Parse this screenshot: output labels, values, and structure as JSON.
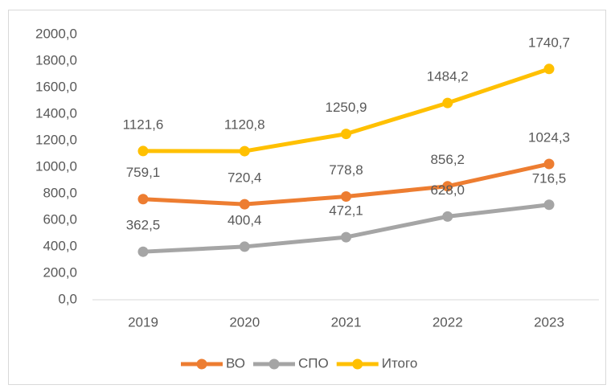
{
  "chart_data": {
    "type": "line",
    "categories": [
      "2019",
      "2020",
      "2021",
      "2022",
      "2023"
    ],
    "series": [
      {
        "name": "ВО",
        "color": "#ED7D31",
        "values": [
          759.1,
          720.4,
          778.8,
          856.2,
          1024.3
        ],
        "value_labels": [
          "759,1",
          "720,4",
          "778,8",
          "856,2",
          "1024,3"
        ]
      },
      {
        "name": "СПО",
        "color": "#A5A5A5",
        "values": [
          362.5,
          400.4,
          472.1,
          628.0,
          716.5
        ],
        "value_labels": [
          "362,5",
          "400,4",
          "472,1",
          "628,0",
          "716,5"
        ]
      },
      {
        "name": "Итого",
        "color": "#FFC000",
        "values": [
          1121.6,
          1120.8,
          1250.9,
          1484.2,
          1740.7
        ],
        "value_labels": [
          "1121,6",
          "1120,8",
          "1250,9",
          "1484,2",
          "1740,7"
        ]
      }
    ],
    "ylim": [
      0,
      2000
    ],
    "yticks": [
      {
        "value": 0,
        "label": "0,0"
      },
      {
        "value": 200,
        "label": "200,0"
      },
      {
        "value": 400,
        "label": "400,0"
      },
      {
        "value": 600,
        "label": "600,0"
      },
      {
        "value": 800,
        "label": "800,0"
      },
      {
        "value": 1000,
        "label": "1000,0"
      },
      {
        "value": 1200,
        "label": "1200,0"
      },
      {
        "value": 1400,
        "label": "1400,0"
      },
      {
        "value": 1600,
        "label": "1600,0"
      },
      {
        "value": 1800,
        "label": "1800,0"
      },
      {
        "value": 2000,
        "label": "2000,0"
      }
    ],
    "grid": false,
    "legend": "bottom"
  }
}
